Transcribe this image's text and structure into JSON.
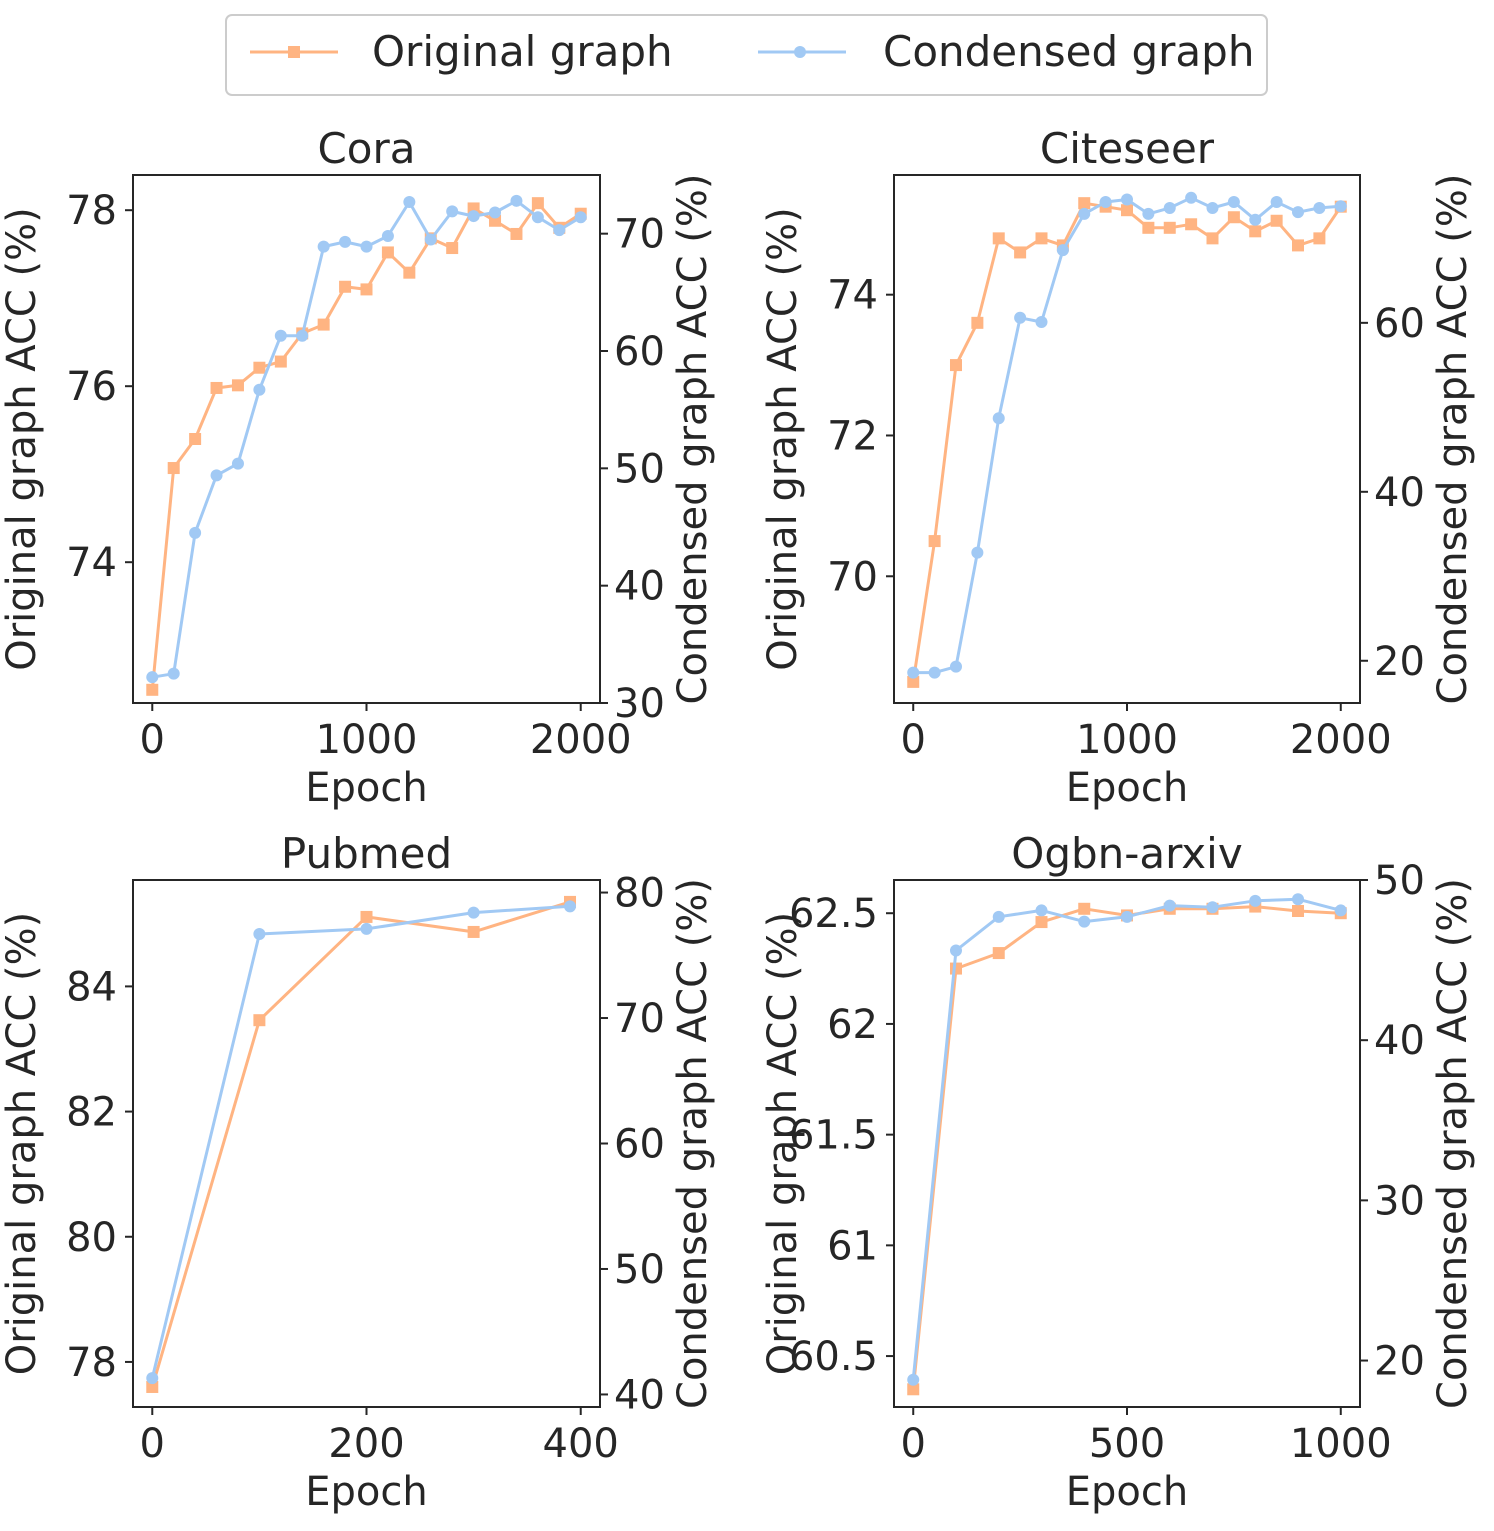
{
  "legend": {
    "original_label": "Original graph",
    "condensed_label": "Condensed graph"
  },
  "colors": {
    "original": "#ffb482",
    "condensed": "#a1c9f4",
    "text": "#262626"
  },
  "chart_data": [
    {
      "type": "line",
      "title": "Cora",
      "xlabel": "Epoch",
      "ylabel_left": "Original graph ACC (%)",
      "ylabel_right": "Condensed graph ACC (%)",
      "xlim": [
        -90,
        2090
      ],
      "xticks": [
        0,
        1000,
        2000
      ],
      "ylim_left": [
        72.4,
        78.4
      ],
      "yticks_left": [
        74,
        76,
        78
      ],
      "ylim_right": [
        30.0,
        75.0
      ],
      "yticks_right": [
        30,
        40,
        50,
        60,
        70
      ],
      "series": [
        {
          "name": "Original graph",
          "axis": "left",
          "marker": "square",
          "x": [
            0,
            100,
            200,
            300,
            400,
            500,
            600,
            700,
            800,
            900,
            1000,
            1100,
            1200,
            1300,
            1400,
            1500,
            1600,
            1700,
            1800,
            1900,
            2000
          ],
          "y": [
            72.55,
            75.07,
            75.4,
            75.98,
            76.01,
            76.21,
            76.28,
            76.6,
            76.7,
            77.13,
            77.1,
            77.52,
            77.29,
            77.68,
            77.57,
            78.02,
            77.88,
            77.73,
            78.08,
            77.8,
            77.96
          ]
        },
        {
          "name": "Condensed graph",
          "axis": "right",
          "marker": "circle",
          "x": [
            0,
            100,
            200,
            300,
            400,
            500,
            600,
            700,
            800,
            900,
            1000,
            1100,
            1200,
            1300,
            1400,
            1500,
            1600,
            1700,
            1800,
            1900,
            2000
          ],
          "y": [
            32.2,
            32.5,
            44.5,
            49.4,
            50.4,
            56.7,
            61.3,
            61.3,
            68.9,
            69.3,
            68.9,
            69.8,
            72.7,
            69.5,
            71.9,
            71.5,
            71.8,
            72.8,
            71.4,
            70.3,
            71.4
          ]
        }
      ]
    },
    {
      "type": "line",
      "title": "Citeseer",
      "xlabel": "Epoch",
      "ylabel_left": "Original graph ACC (%)",
      "ylabel_right": "Condensed graph ACC (%)",
      "xlim": [
        -90,
        2090
      ],
      "xticks": [
        0,
        1000,
        2000
      ],
      "ylim_left": [
        68.2,
        75.7
      ],
      "yticks_left": [
        70,
        72,
        74
      ],
      "ylim_right": [
        15.0,
        77.5
      ],
      "yticks_right": [
        20,
        40,
        60
      ],
      "series": [
        {
          "name": "Original graph",
          "axis": "left",
          "marker": "square",
          "x": [
            0,
            100,
            200,
            300,
            400,
            500,
            600,
            700,
            800,
            900,
            1000,
            1100,
            1200,
            1300,
            1400,
            1500,
            1600,
            1700,
            1800,
            1900,
            2000
          ],
          "y": [
            68.5,
            70.5,
            73.0,
            73.6,
            74.8,
            74.6,
            74.8,
            74.7,
            75.3,
            75.25,
            75.2,
            74.95,
            74.95,
            75.0,
            74.8,
            75.1,
            74.9,
            75.05,
            74.7,
            74.8,
            75.25
          ]
        },
        {
          "name": "Condensed graph",
          "axis": "right",
          "marker": "circle",
          "x": [
            0,
            100,
            200,
            300,
            400,
            500,
            600,
            700,
            800,
            900,
            1000,
            1100,
            1200,
            1300,
            1400,
            1500,
            1600,
            1700,
            1800,
            1900,
            2000
          ],
          "y": [
            18.6,
            18.6,
            19.3,
            32.8,
            48.7,
            60.6,
            60.1,
            68.6,
            72.9,
            74.3,
            74.6,
            72.9,
            73.6,
            74.8,
            73.6,
            74.3,
            72.2,
            74.3,
            73.1,
            73.6,
            73.8
          ]
        }
      ]
    },
    {
      "type": "line",
      "title": "Pubmed",
      "xlabel": "Epoch",
      "ylabel_left": "Original graph ACC (%)",
      "ylabel_right": "Condensed graph ACC (%)",
      "xlim": [
        -18,
        418
      ],
      "xticks": [
        0,
        200,
        400
      ],
      "ylim_left": [
        77.28,
        85.7
      ],
      "yticks_left": [
        78,
        80,
        82,
        84
      ],
      "ylim_right": [
        39.0,
        81.0
      ],
      "yticks_right": [
        40,
        50,
        60,
        70,
        80
      ],
      "series": [
        {
          "name": "Original graph",
          "axis": "left",
          "marker": "square",
          "x": [
            0,
            100,
            200,
            300,
            390
          ],
          "y": [
            77.6,
            83.46,
            85.11,
            84.87,
            85.35
          ]
        },
        {
          "name": "Condensed graph",
          "axis": "right",
          "marker": "circle",
          "x": [
            0,
            100,
            200,
            300,
            390
          ],
          "y": [
            41.3,
            76.7,
            77.1,
            78.4,
            78.9
          ]
        }
      ]
    },
    {
      "type": "line",
      "title": "Ogbn-arxiv",
      "xlabel": "Epoch",
      "ylabel_left": "Original graph ACC (%)",
      "ylabel_right": "Condensed graph ACC (%)",
      "xlim": [
        -45,
        1045
      ],
      "xticks": [
        0,
        500,
        1000
      ],
      "ylim_left": [
        60.27,
        62.65
      ],
      "yticks_left": [
        60.5,
        61.0,
        61.5,
        62.0,
        62.5
      ],
      "ylim_right": [
        17.1,
        50.0
      ],
      "yticks_right": [
        20,
        30,
        40,
        50
      ],
      "series": [
        {
          "name": "Original graph",
          "axis": "left",
          "marker": "square",
          "x": [
            0,
            100,
            200,
            300,
            400,
            500,
            600,
            700,
            800,
            900,
            1000
          ],
          "y": [
            60.35,
            62.25,
            62.32,
            62.46,
            62.52,
            62.49,
            62.52,
            62.52,
            62.53,
            62.51,
            62.5
          ]
        },
        {
          "name": "Condensed graph",
          "axis": "right",
          "marker": "circle",
          "x": [
            0,
            100,
            200,
            300,
            400,
            500,
            600,
            700,
            800,
            900,
            1000
          ],
          "y": [
            18.8,
            45.6,
            47.7,
            48.1,
            47.4,
            47.7,
            48.4,
            48.3,
            48.7,
            48.8,
            48.1
          ]
        }
      ]
    }
  ]
}
